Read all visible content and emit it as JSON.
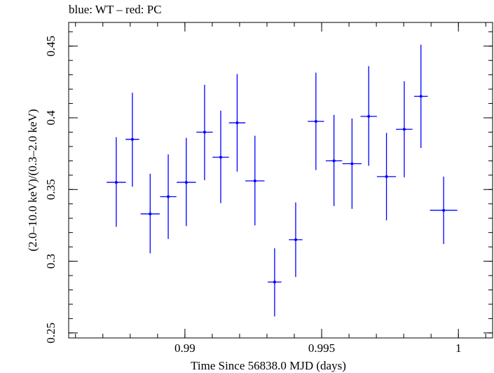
{
  "header": {
    "text": "blue: WT – red: PC"
  },
  "chart_data": {
    "type": "scatter",
    "title": "blue: WT – red: PC",
    "xlabel": "Time Since 56838.0 MJD (days)",
    "ylabel": "(2.0–10.0 keV)/(0.3–2.0 keV)",
    "xlim": [
      0.98575,
      1.00125
    ],
    "ylim": [
      0.2465,
      0.4665
    ],
    "xticks": [
      {
        "value": 0.99,
        "label": "0.99"
      },
      {
        "value": 0.995,
        "label": "0.995"
      },
      {
        "value": 1.0,
        "label": "1"
      }
    ],
    "yticks": [
      {
        "value": 0.25,
        "label": "0.25"
      },
      {
        "value": 0.3,
        "label": "0.3"
      },
      {
        "value": 0.35,
        "label": "0.35"
      },
      {
        "value": 0.4,
        "label": "0.4"
      },
      {
        "value": 0.45,
        "label": "0.45"
      }
    ],
    "x_minor_step": 0.001,
    "y_minor_step": 0.01,
    "grid": false,
    "series": [
      {
        "color": "#0000ff",
        "points": [
          {
            "x": 0.98749,
            "xerr": 0.00035,
            "y": 0.355,
            "yerr_low": 0.031,
            "yerr_high": 0.0315
          },
          {
            "x": 0.98808,
            "xerr": 0.00025,
            "y": 0.385,
            "yerr_low": 0.033,
            "yerr_high": 0.0325
          },
          {
            "x": 0.98873,
            "xerr": 0.00035,
            "y": 0.333,
            "yerr_low": 0.0275,
            "yerr_high": 0.028
          },
          {
            "x": 0.98939,
            "xerr": 0.0003,
            "y": 0.345,
            "yerr_low": 0.0295,
            "yerr_high": 0.0295
          },
          {
            "x": 0.99005,
            "xerr": 0.00035,
            "y": 0.355,
            "yerr_low": 0.0305,
            "yerr_high": 0.031
          },
          {
            "x": 0.99072,
            "xerr": 0.0003,
            "y": 0.39,
            "yerr_low": 0.0335,
            "yerr_high": 0.033
          },
          {
            "x": 0.99131,
            "xerr": 0.0003,
            "y": 0.3725,
            "yerr_low": 0.032,
            "yerr_high": 0.0325
          },
          {
            "x": 0.99191,
            "xerr": 0.0003,
            "y": 0.3965,
            "yerr_low": 0.034,
            "yerr_high": 0.034
          },
          {
            "x": 0.99256,
            "xerr": 0.00035,
            "y": 0.356,
            "yerr_low": 0.031,
            "yerr_high": 0.0315
          },
          {
            "x": 0.99328,
            "xerr": 0.00025,
            "y": 0.2855,
            "yerr_low": 0.024,
            "yerr_high": 0.0235
          },
          {
            "x": 0.99405,
            "xerr": 0.00025,
            "y": 0.315,
            "yerr_low": 0.026,
            "yerr_high": 0.026
          },
          {
            "x": 0.99479,
            "xerr": 0.0003,
            "y": 0.3975,
            "yerr_low": 0.034,
            "yerr_high": 0.034
          },
          {
            "x": 0.99545,
            "xerr": 0.0003,
            "y": 0.37,
            "yerr_low": 0.0315,
            "yerr_high": 0.032
          },
          {
            "x": 0.99611,
            "xerr": 0.00035,
            "y": 0.368,
            "yerr_low": 0.0315,
            "yerr_high": 0.0315
          },
          {
            "x": 0.99672,
            "xerr": 0.0003,
            "y": 0.401,
            "yerr_low": 0.0345,
            "yerr_high": 0.035
          },
          {
            "x": 0.99737,
            "xerr": 0.00035,
            "y": 0.359,
            "yerr_low": 0.0305,
            "yerr_high": 0.0305
          },
          {
            "x": 0.99802,
            "xerr": 0.0003,
            "y": 0.392,
            "yerr_low": 0.0335,
            "yerr_high": 0.0335
          },
          {
            "x": 0.99863,
            "xerr": 0.00025,
            "y": 0.415,
            "yerr_low": 0.036,
            "yerr_high": 0.036
          },
          {
            "x": 0.99946,
            "xerr": 0.0005,
            "y": 0.3355,
            "yerr_low": 0.0235,
            "yerr_high": 0.0235
          }
        ]
      }
    ]
  }
}
